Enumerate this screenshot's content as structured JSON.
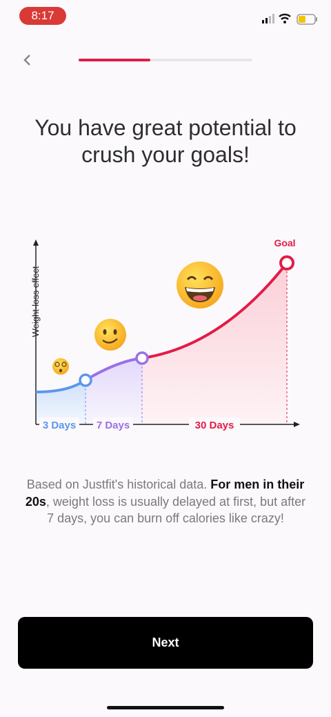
{
  "status_bar": {
    "time": "8:17"
  },
  "title": "You have great potential to crush your goals!",
  "chart": {
    "y_axis_label": "Weight-loss effect",
    "goal_label": "Goal",
    "phase_labels": [
      "3 Days",
      "7 Days",
      "30 Days"
    ]
  },
  "description": [
    {
      "text": "Based on Justfit's historical data. ",
      "bold": false
    },
    {
      "text": "For men in their 20s",
      "bold": true
    },
    {
      "text": ", weight loss is usually delayed at first, but after 7 days, you can burn off calories like crazy!",
      "bold": false
    }
  ],
  "button": {
    "label": "Next"
  }
}
